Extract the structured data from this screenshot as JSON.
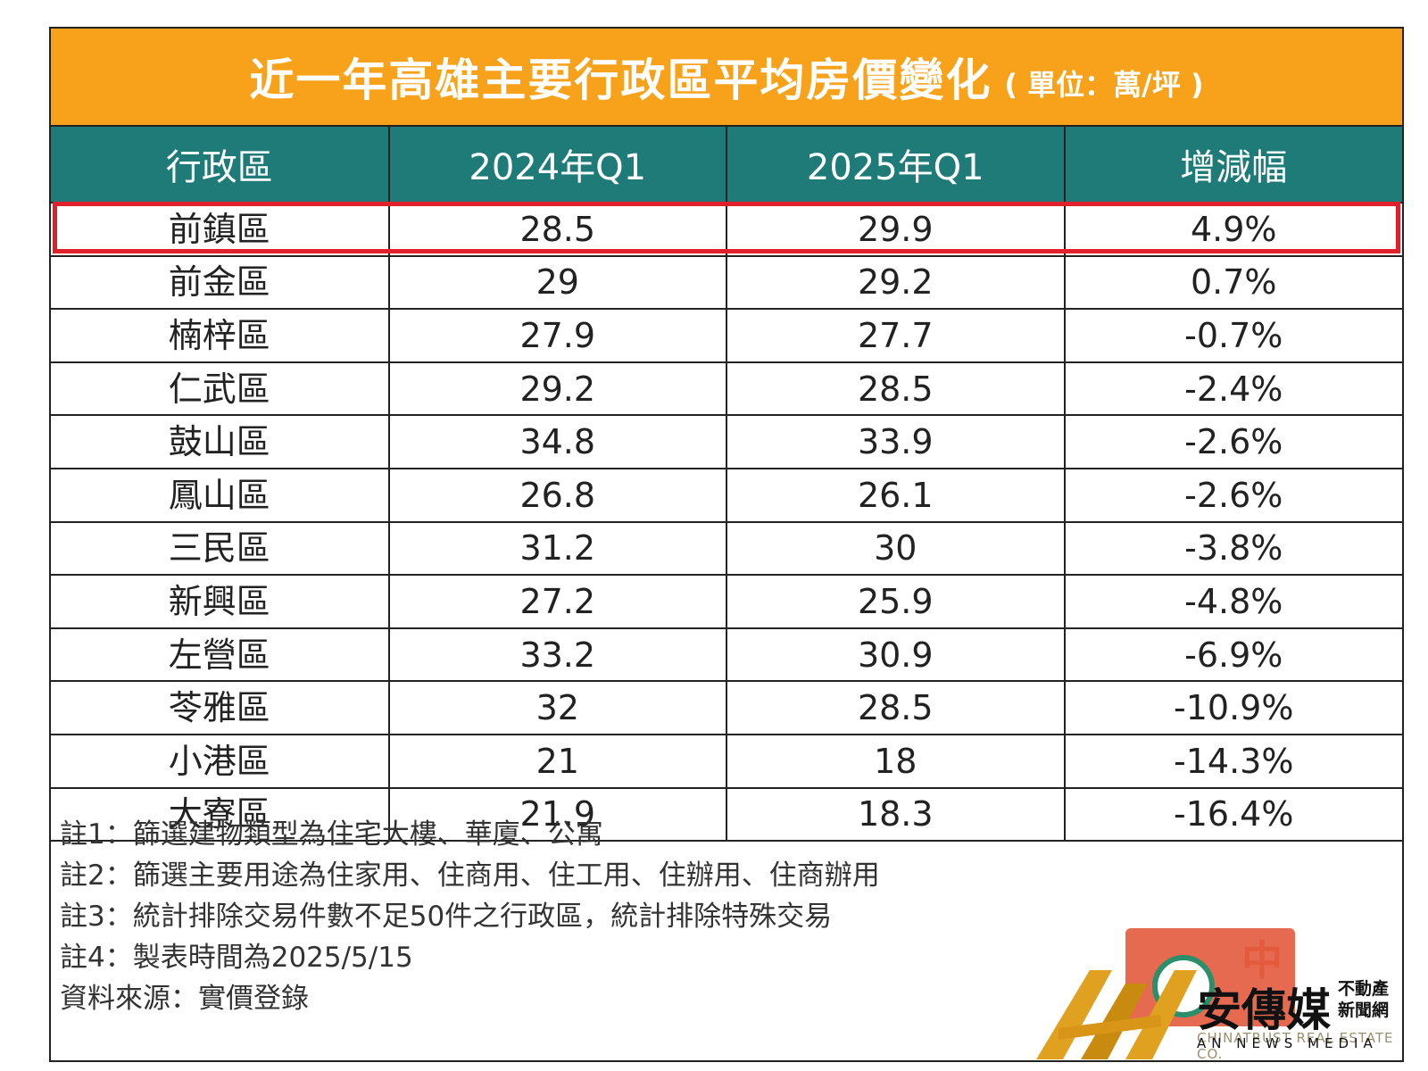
{
  "title": "近一年高雄主要行政區平均房價變化",
  "unit": "( 單位：萬/坪 )",
  "chart_data": {
    "type": "table",
    "columns": [
      "行政區",
      "2024年Q1",
      "2025年Q1",
      "增減幅"
    ],
    "rows": [
      {
        "district": "前鎮區",
        "q1_2024": "28.5",
        "q1_2025": "29.9",
        "change": "4.9%",
        "highlight": true
      },
      {
        "district": "前金區",
        "q1_2024": "29",
        "q1_2025": "29.2",
        "change": "0.7%"
      },
      {
        "district": "楠梓區",
        "q1_2024": "27.9",
        "q1_2025": "27.7",
        "change": "-0.7%"
      },
      {
        "district": "仁武區",
        "q1_2024": "29.2",
        "q1_2025": "28.5",
        "change": "-2.4%"
      },
      {
        "district": "鼓山區",
        "q1_2024": "34.8",
        "q1_2025": "33.9",
        "change": "-2.6%"
      },
      {
        "district": "鳳山區",
        "q1_2024": "26.8",
        "q1_2025": "26.1",
        "change": "-2.6%"
      },
      {
        "district": "三民區",
        "q1_2024": "31.2",
        "q1_2025": "30",
        "change": "-3.8%"
      },
      {
        "district": "新興區",
        "q1_2024": "27.2",
        "q1_2025": "25.9",
        "change": "-4.8%"
      },
      {
        "district": "左營區",
        "q1_2024": "33.2",
        "q1_2025": "30.9",
        "change": "-6.9%"
      },
      {
        "district": "苓雅區",
        "q1_2024": "32",
        "q1_2025": "28.5",
        "change": "-10.9%"
      },
      {
        "district": "小港區",
        "q1_2024": "21",
        "q1_2025": "18",
        "change": "-14.3%"
      },
      {
        "district": "大寮區",
        "q1_2024": "21.9",
        "q1_2025": "18.3",
        "change": "-16.4%"
      }
    ]
  },
  "notes": [
    "註1：篩選建物類型為住宅大樓、華廈、公寓",
    "註2：篩選主要用途為住家用、住商用、住工用、住辦用、住商辦用",
    "註3：統計排除交易件數不足50件之行政區，統計排除特殊交易",
    "註4：製表時間為2025/5/15",
    "資料來源：實價登錄"
  ],
  "logos": {
    "chinatrust_cn": "中",
    "chinatrust_en": "CHINATRUST REAL ESTATE CO.",
    "an_cn": "安傳媒",
    "an_cn_small_1": "不動產",
    "an_cn_small_2": "新聞網",
    "an_en": "AN NEWS MEDIA"
  },
  "colors": {
    "title_bg": "#f7a21a",
    "header_bg": "#1f7b78",
    "highlight_border": "#e0202a"
  }
}
